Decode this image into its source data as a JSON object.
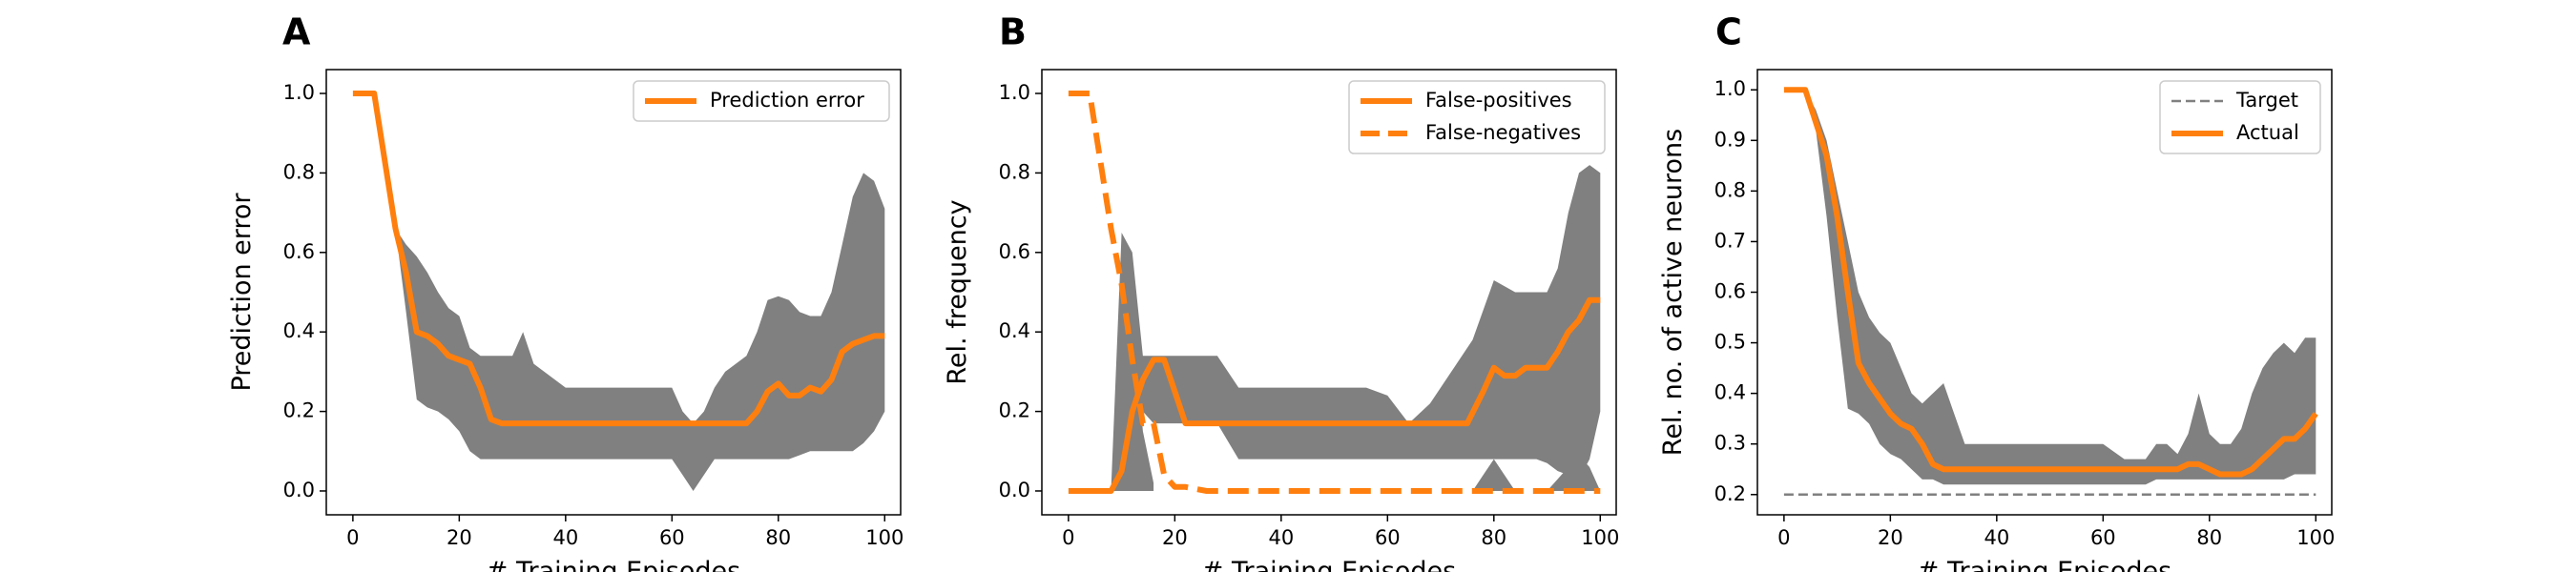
{
  "chart_data": [
    {
      "panel": "A",
      "type": "line",
      "xlabel": "# Training Episodes",
      "ylabel": "Prediction error",
      "xlim": [
        -5,
        103
      ],
      "ylim": [
        -0.06,
        1.06
      ],
      "xticks": [
        0,
        20,
        40,
        60,
        80,
        100
      ],
      "yticks": [
        0.0,
        0.2,
        0.4,
        0.6,
        0.8,
        1.0
      ],
      "ytick_decimals": 1,
      "legend_position": "upper right",
      "grid": false,
      "series": [
        {
          "name": "Prediction error",
          "style": "solid",
          "color": "#ff7f0e",
          "x": [
            0,
            4,
            8,
            10,
            12,
            14,
            16,
            18,
            20,
            22,
            24,
            26,
            28,
            30,
            40,
            50,
            60,
            70,
            74,
            76,
            78,
            80,
            82,
            84,
            86,
            88,
            90,
            92,
            94,
            96,
            98,
            100
          ],
          "y": [
            1.0,
            1.0,
            0.66,
            0.55,
            0.4,
            0.39,
            0.37,
            0.34,
            0.33,
            0.32,
            0.26,
            0.18,
            0.17,
            0.17,
            0.17,
            0.17,
            0.17,
            0.17,
            0.17,
            0.2,
            0.25,
            0.27,
            0.24,
            0.24,
            0.26,
            0.25,
            0.28,
            0.35,
            0.37,
            0.38,
            0.39,
            0.39
          ]
        }
      ],
      "bands": [
        {
          "color": "#808080",
          "x": [
            0,
            4,
            8,
            10,
            12,
            14,
            16,
            18,
            20,
            22,
            24,
            26,
            28,
            30,
            32,
            34,
            40,
            50,
            58,
            60,
            62,
            64,
            66,
            68,
            70,
            72,
            74,
            76,
            78,
            80,
            82,
            84,
            86,
            88,
            90,
            92,
            94,
            96,
            98,
            100
          ],
          "lower": [
            1.0,
            1.0,
            0.66,
            0.45,
            0.23,
            0.21,
            0.2,
            0.18,
            0.15,
            0.1,
            0.08,
            0.08,
            0.08,
            0.08,
            0.08,
            0.08,
            0.08,
            0.08,
            0.08,
            0.08,
            0.04,
            0.0,
            0.04,
            0.08,
            0.08,
            0.08,
            0.08,
            0.08,
            0.08,
            0.08,
            0.08,
            0.09,
            0.1,
            0.1,
            0.1,
            0.1,
            0.1,
            0.12,
            0.15,
            0.2
          ],
          "upper": [
            1.0,
            1.0,
            0.66,
            0.62,
            0.59,
            0.55,
            0.5,
            0.46,
            0.44,
            0.36,
            0.34,
            0.34,
            0.34,
            0.34,
            0.4,
            0.32,
            0.26,
            0.26,
            0.26,
            0.26,
            0.2,
            0.17,
            0.2,
            0.26,
            0.3,
            0.32,
            0.34,
            0.4,
            0.48,
            0.49,
            0.48,
            0.45,
            0.44,
            0.44,
            0.5,
            0.62,
            0.74,
            0.8,
            0.78,
            0.71
          ]
        }
      ]
    },
    {
      "panel": "B",
      "type": "line",
      "xlabel": "# Training Episodes",
      "ylabel": "Rel. frequency",
      "xlim": [
        -5,
        103
      ],
      "ylim": [
        -0.06,
        1.06
      ],
      "xticks": [
        0,
        20,
        40,
        60,
        80,
        100
      ],
      "yticks": [
        0.0,
        0.2,
        0.4,
        0.6,
        0.8,
        1.0
      ],
      "ytick_decimals": 1,
      "legend_position": "upper right",
      "grid": false,
      "series": [
        {
          "name": "False-positives",
          "style": "solid",
          "color": "#ff7f0e",
          "x": [
            0,
            4,
            8,
            10,
            12,
            14,
            16,
            18,
            20,
            22,
            24,
            30,
            40,
            50,
            60,
            70,
            75,
            78,
            80,
            82,
            84,
            86,
            88,
            90,
            92,
            94,
            96,
            98,
            100
          ],
          "y": [
            0.0,
            0.0,
            0.0,
            0.05,
            0.2,
            0.28,
            0.33,
            0.33,
            0.25,
            0.17,
            0.17,
            0.17,
            0.17,
            0.17,
            0.17,
            0.17,
            0.17,
            0.25,
            0.31,
            0.29,
            0.29,
            0.31,
            0.31,
            0.31,
            0.35,
            0.4,
            0.43,
            0.48,
            0.48
          ]
        },
        {
          "name": "False-negatives",
          "style": "dashed",
          "color": "#ff7f0e",
          "x": [
            0,
            4,
            8,
            10,
            12,
            14,
            16,
            18,
            20,
            22,
            26,
            30,
            40,
            50,
            60,
            70,
            80,
            90,
            100
          ],
          "y": [
            1.0,
            1.0,
            0.66,
            0.52,
            0.33,
            0.17,
            0.17,
            0.04,
            0.01,
            0.01,
            0.0,
            0.0,
            0.0,
            0.0,
            0.0,
            0.0,
            0.0,
            0.0,
            0.0
          ]
        }
      ],
      "bands": [
        {
          "color": "#808080",
          "x": [
            0,
            8,
            10,
            12,
            14,
            16,
            20,
            24,
            28,
            32,
            36,
            40,
            50,
            56,
            60,
            64,
            68,
            72,
            76,
            80,
            84,
            88,
            90,
            92,
            94,
            96,
            98,
            100
          ],
          "lower": [
            0.0,
            0.0,
            0.0,
            0.05,
            0.2,
            0.17,
            0.17,
            0.17,
            0.17,
            0.08,
            0.08,
            0.08,
            0.08,
            0.08,
            0.08,
            0.08,
            0.08,
            0.08,
            0.08,
            0.08,
            0.08,
            0.08,
            0.07,
            0.05,
            0.04,
            0.03,
            0.08,
            0.2
          ],
          "upper": [
            0.0,
            0.0,
            0.65,
            0.6,
            0.34,
            0.34,
            0.34,
            0.34,
            0.34,
            0.26,
            0.26,
            0.26,
            0.26,
            0.26,
            0.24,
            0.17,
            0.22,
            0.3,
            0.38,
            0.53,
            0.5,
            0.5,
            0.5,
            0.56,
            0.7,
            0.8,
            0.82,
            0.8
          ]
        },
        {
          "color": "#808080",
          "x": [
            0,
            8,
            9,
            10,
            11,
            12,
            13,
            14,
            16
          ],
          "lower": [
            0.0,
            0.0,
            0.0,
            0.0,
            0.0,
            0.0,
            0.0,
            0.0,
            0.0
          ],
          "upper": [
            0.0,
            0.0,
            0.1,
            0.3,
            0.5,
            0.45,
            0.3,
            0.15,
            0.02
          ]
        },
        {
          "color": "#808080",
          "x": [
            76,
            78,
            80,
            82,
            84,
            86
          ],
          "lower": [
            0.0,
            0.0,
            0.0,
            0.0,
            0.0,
            0.0
          ],
          "upper": [
            0.0,
            0.04,
            0.08,
            0.04,
            0.0,
            0.0
          ]
        },
        {
          "color": "#808080",
          "x": [
            90,
            92,
            94,
            96,
            98,
            100
          ],
          "lower": [
            0.0,
            0.0,
            0.0,
            0.0,
            0.0,
            0.0
          ],
          "upper": [
            0.0,
            0.03,
            0.06,
            0.09,
            0.06,
            0.0
          ]
        }
      ]
    },
    {
      "panel": "C",
      "type": "line",
      "xlabel": "# Training Episodes",
      "ylabel": "Rel. no. of active neurons",
      "xlim": [
        -5,
        103
      ],
      "ylim": [
        0.16,
        1.04
      ],
      "xticks": [
        0,
        20,
        40,
        60,
        80,
        100
      ],
      "yticks": [
        0.2,
        0.3,
        0.4,
        0.5,
        0.6,
        0.7,
        0.8,
        0.9,
        1.0
      ],
      "ytick_decimals": 1,
      "legend_position": "upper right",
      "grid": false,
      "series": [
        {
          "name": "Target",
          "style": "dashed",
          "color": "#808080",
          "x": [
            0,
            100
          ],
          "y": [
            0.2,
            0.2
          ]
        },
        {
          "name": "Actual",
          "style": "solid",
          "color": "#ff7f0e",
          "x": [
            0,
            4,
            8,
            10,
            12,
            14,
            16,
            18,
            20,
            22,
            24,
            26,
            28,
            30,
            32,
            40,
            50,
            60,
            70,
            74,
            76,
            78,
            80,
            82,
            84,
            86,
            88,
            90,
            92,
            94,
            96,
            98,
            100
          ],
          "y": [
            1.0,
            1.0,
            0.87,
            0.75,
            0.6,
            0.46,
            0.42,
            0.39,
            0.36,
            0.34,
            0.33,
            0.3,
            0.26,
            0.25,
            0.25,
            0.25,
            0.25,
            0.25,
            0.25,
            0.25,
            0.26,
            0.26,
            0.25,
            0.24,
            0.24,
            0.24,
            0.25,
            0.27,
            0.29,
            0.31,
            0.31,
            0.33,
            0.36
          ]
        }
      ],
      "bands": [
        {
          "color": "#808080",
          "x": [
            0,
            4,
            6,
            8,
            10,
            12,
            14,
            16,
            18,
            20,
            22,
            24,
            26,
            28,
            30,
            32,
            34,
            36,
            40,
            50,
            56,
            60,
            64,
            68,
            70,
            72,
            74,
            76,
            78,
            80,
            82,
            84,
            86,
            88,
            90,
            92,
            94,
            96,
            98,
            100
          ],
          "lower": [
            1.0,
            1.0,
            0.92,
            0.75,
            0.55,
            0.37,
            0.36,
            0.34,
            0.3,
            0.28,
            0.27,
            0.25,
            0.23,
            0.23,
            0.22,
            0.22,
            0.22,
            0.22,
            0.22,
            0.22,
            0.22,
            0.22,
            0.22,
            0.22,
            0.23,
            0.23,
            0.23,
            0.23,
            0.23,
            0.23,
            0.23,
            0.23,
            0.23,
            0.23,
            0.23,
            0.23,
            0.23,
            0.24,
            0.24,
            0.24
          ],
          "upper": [
            1.0,
            1.0,
            0.96,
            0.9,
            0.8,
            0.7,
            0.6,
            0.55,
            0.52,
            0.5,
            0.45,
            0.4,
            0.38,
            0.4,
            0.42,
            0.36,
            0.3,
            0.3,
            0.3,
            0.3,
            0.3,
            0.3,
            0.27,
            0.27,
            0.3,
            0.3,
            0.28,
            0.32,
            0.4,
            0.32,
            0.3,
            0.3,
            0.33,
            0.4,
            0.45,
            0.48,
            0.5,
            0.48,
            0.51,
            0.51
          ]
        }
      ]
    }
  ]
}
